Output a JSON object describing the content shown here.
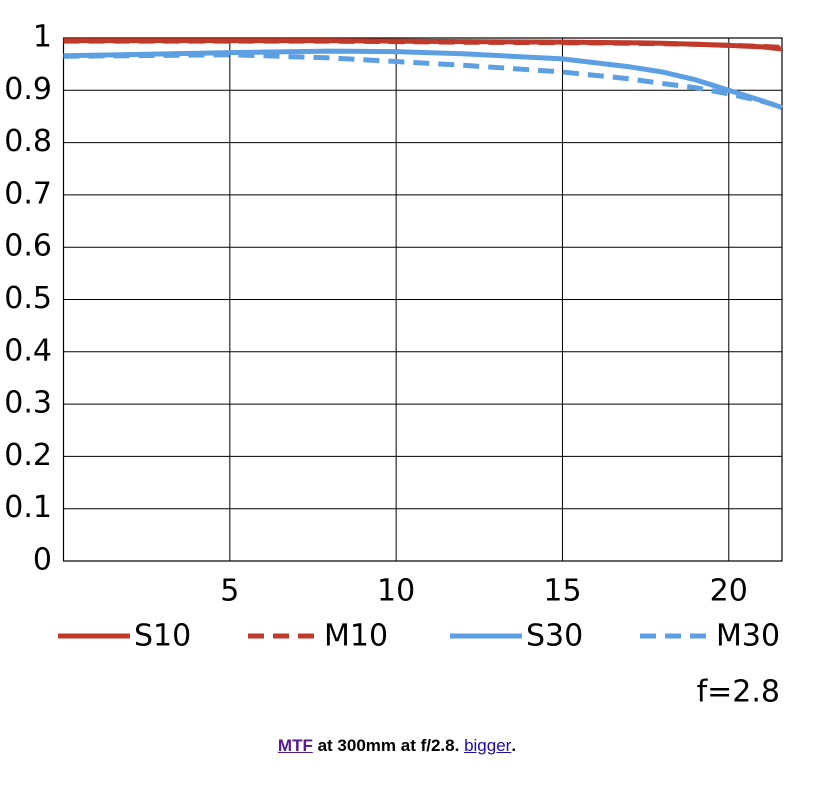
{
  "chart_data": {
    "type": "line",
    "x": [
      0,
      5,
      8,
      10,
      12,
      15,
      17,
      18,
      19,
      20,
      21,
      21.6
    ],
    "series": [
      {
        "name": "S10",
        "color": "#c0392b",
        "dashed": false,
        "values": [
          0.995,
          0.995,
          0.995,
          0.994,
          0.993,
          0.992,
          0.991,
          0.99,
          0.988,
          0.986,
          0.983,
          0.979
        ]
      },
      {
        "name": "M10",
        "color": "#c0392b",
        "dashed": true,
        "values": [
          0.994,
          0.994,
          0.994,
          0.993,
          0.992,
          0.991,
          0.99,
          0.989,
          0.988,
          0.986,
          0.984,
          0.982
        ]
      },
      {
        "name": "S30",
        "color": "#5d9fe3",
        "dashed": false,
        "values": [
          0.966,
          0.972,
          0.975,
          0.974,
          0.97,
          0.96,
          0.945,
          0.935,
          0.92,
          0.9,
          0.88,
          0.867
        ]
      },
      {
        "name": "M30",
        "color": "#5d9fe3",
        "dashed": true,
        "values": [
          0.965,
          0.968,
          0.962,
          0.955,
          0.948,
          0.935,
          0.922,
          0.913,
          0.905,
          0.893,
          0.879,
          0.868
        ]
      }
    ],
    "xlim": [
      0,
      21.6
    ],
    "ylim": [
      0,
      1
    ],
    "xticks": [
      5,
      10,
      15,
      20
    ],
    "yticks": [
      0,
      0.1,
      0.2,
      0.3,
      0.4,
      0.5,
      0.6,
      0.7,
      0.8,
      0.9,
      1
    ],
    "grid": true,
    "annotation": "f=2.8"
  },
  "caption": {
    "link": "MTF",
    "text": "at 300mm at f/2.8.",
    "link2": "bigger",
    "end": "."
  }
}
